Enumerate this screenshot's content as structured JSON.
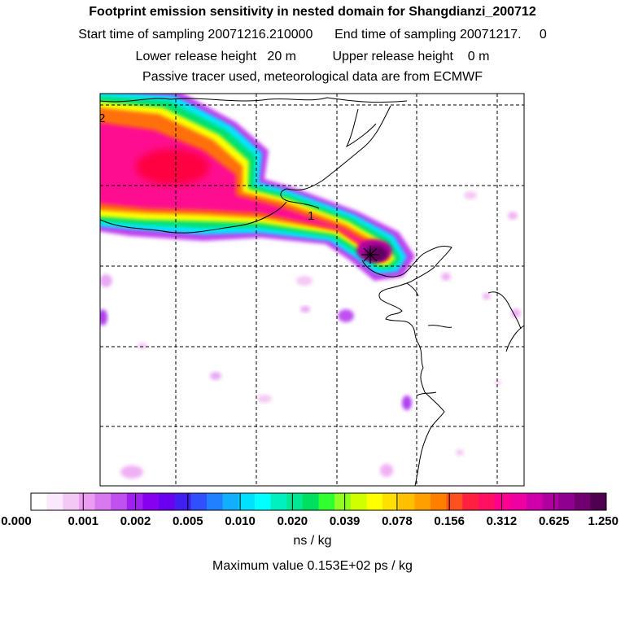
{
  "header": {
    "title": "Footprint emission sensitivity in nested domain for Shangdianzi_200712",
    "sampling_line": "Start time of sampling 20071216.210000      End time of sampling 20071217.     0",
    "release_line": "Lower release height   20 m          Upper release height    0 m",
    "tracer_line": "Passive tracer used, meteorological data are from ECMWF"
  },
  "chart_data": {
    "type": "heatmap",
    "title": "Footprint emission sensitivity in nested domain for Shangdianzi_200712",
    "colorbar": {
      "tick_labels": [
        "0.000",
        "0.001",
        "0.002",
        "0.005",
        "0.010",
        "0.020",
        "0.039",
        "0.078",
        "0.156",
        "0.312",
        "0.625",
        "1.250"
      ],
      "colors": [
        "#ffffff",
        "#fce8fc",
        "#f4c8f4",
        "#ec9cf2",
        "#d879f0",
        "#c050f0",
        "#a020f0",
        "#8800f0",
        "#6a00f0",
        "#4020f0",
        "#3050ff",
        "#2080ff",
        "#10b0ff",
        "#00e0ff",
        "#00ffff",
        "#00f0c0",
        "#00e890",
        "#00e060",
        "#30ff30",
        "#90ff20",
        "#d0ff00",
        "#ffff00",
        "#ffe000",
        "#ffc000",
        "#ffa000",
        "#ff8000",
        "#ff5020",
        "#ff2040",
        "#ff1060",
        "#ff0090",
        "#f000a0",
        "#d000a8",
        "#b000a0",
        "#900090",
        "#700070",
        "#500050"
      ],
      "unit": "ns / kg"
    },
    "map_labels": [
      "2",
      "1"
    ],
    "max_value_text": "Maximum value  0.153E+02 ps / kg"
  }
}
